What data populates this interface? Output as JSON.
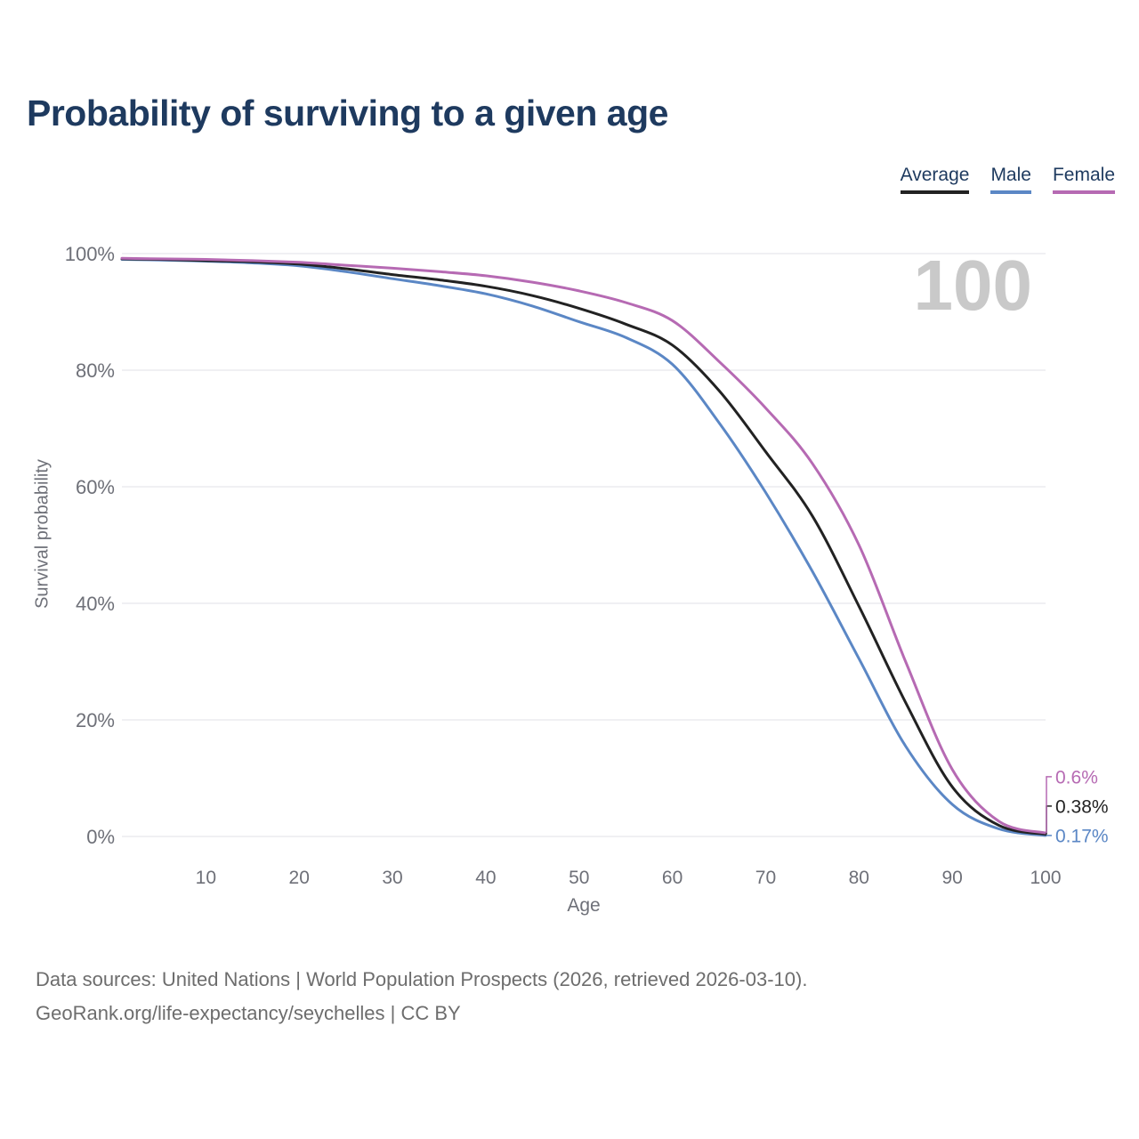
{
  "header": {
    "title": "Probability of surviving to a given age"
  },
  "chart_data": {
    "type": "line",
    "title": "Probability of surviving to a given age",
    "xlabel": "Age",
    "ylabel": "Survival probability",
    "xlim": [
      1,
      100
    ],
    "ylim": [
      0,
      100
    ],
    "grid": "horizontal",
    "legend_position": "top-right",
    "watermark": "100",
    "x": [
      1,
      5,
      10,
      15,
      20,
      25,
      30,
      35,
      40,
      45,
      50,
      55,
      60,
      65,
      70,
      75,
      80,
      85,
      90,
      95,
      100
    ],
    "series": [
      {
        "name": "Average",
        "color": "#222222",
        "end_label": "0.38%",
        "values": [
          99.1,
          99.0,
          98.8,
          98.6,
          98.2,
          97.4,
          96.4,
          95.5,
          94.4,
          92.8,
          90.6,
          87.9,
          84.3,
          76.5,
          66.0,
          55.0,
          39.5,
          23.0,
          8.5,
          1.9,
          0.38
        ]
      },
      {
        "name": "Male",
        "color": "#5b87c5",
        "end_label": "0.17%",
        "values": [
          99.0,
          98.9,
          98.7,
          98.4,
          97.9,
          96.9,
          95.7,
          94.5,
          93.1,
          91.0,
          88.3,
          85.6,
          81.0,
          71.0,
          59.0,
          45.5,
          30.5,
          15.5,
          5.5,
          1.3,
          0.17
        ]
      },
      {
        "name": "Female",
        "color": "#b66ab3",
        "end_label": "0.6%",
        "values": [
          99.2,
          99.1,
          99.0,
          98.8,
          98.5,
          98.0,
          97.5,
          96.9,
          96.2,
          95.1,
          93.6,
          91.6,
          88.5,
          81.5,
          73.5,
          64.0,
          50.0,
          30.0,
          11.5,
          2.6,
          0.6
        ]
      }
    ],
    "xticks": [
      {
        "value": 10,
        "label": "10"
      },
      {
        "value": 20,
        "label": "20"
      },
      {
        "value": 30,
        "label": "30"
      },
      {
        "value": 40,
        "label": "40"
      },
      {
        "value": 50,
        "label": "50"
      },
      {
        "value": 60,
        "label": "60"
      },
      {
        "value": 70,
        "label": "70"
      },
      {
        "value": 80,
        "label": "80"
      },
      {
        "value": 90,
        "label": "90"
      },
      {
        "value": 100,
        "label": "100"
      }
    ],
    "yticks": [
      {
        "value": 0,
        "label": "0%"
      },
      {
        "value": 20,
        "label": "20%"
      },
      {
        "value": 40,
        "label": "40%"
      },
      {
        "value": 60,
        "label": "60%"
      },
      {
        "value": 80,
        "label": "80%"
      },
      {
        "value": 100,
        "label": "100%"
      }
    ],
    "colors": {
      "grid": "#ececef",
      "axis_text": "#6e7078",
      "watermark": "#c9c9c9",
      "title": "#1e3a5f",
      "footer": "#6d6d6d"
    }
  },
  "footer": {
    "line1": "Data sources: United Nations | World Population Prospects (2026, retrieved 2026-03-10).",
    "line2": "GeoRank.org/life-expectancy/seychelles | CC BY"
  }
}
